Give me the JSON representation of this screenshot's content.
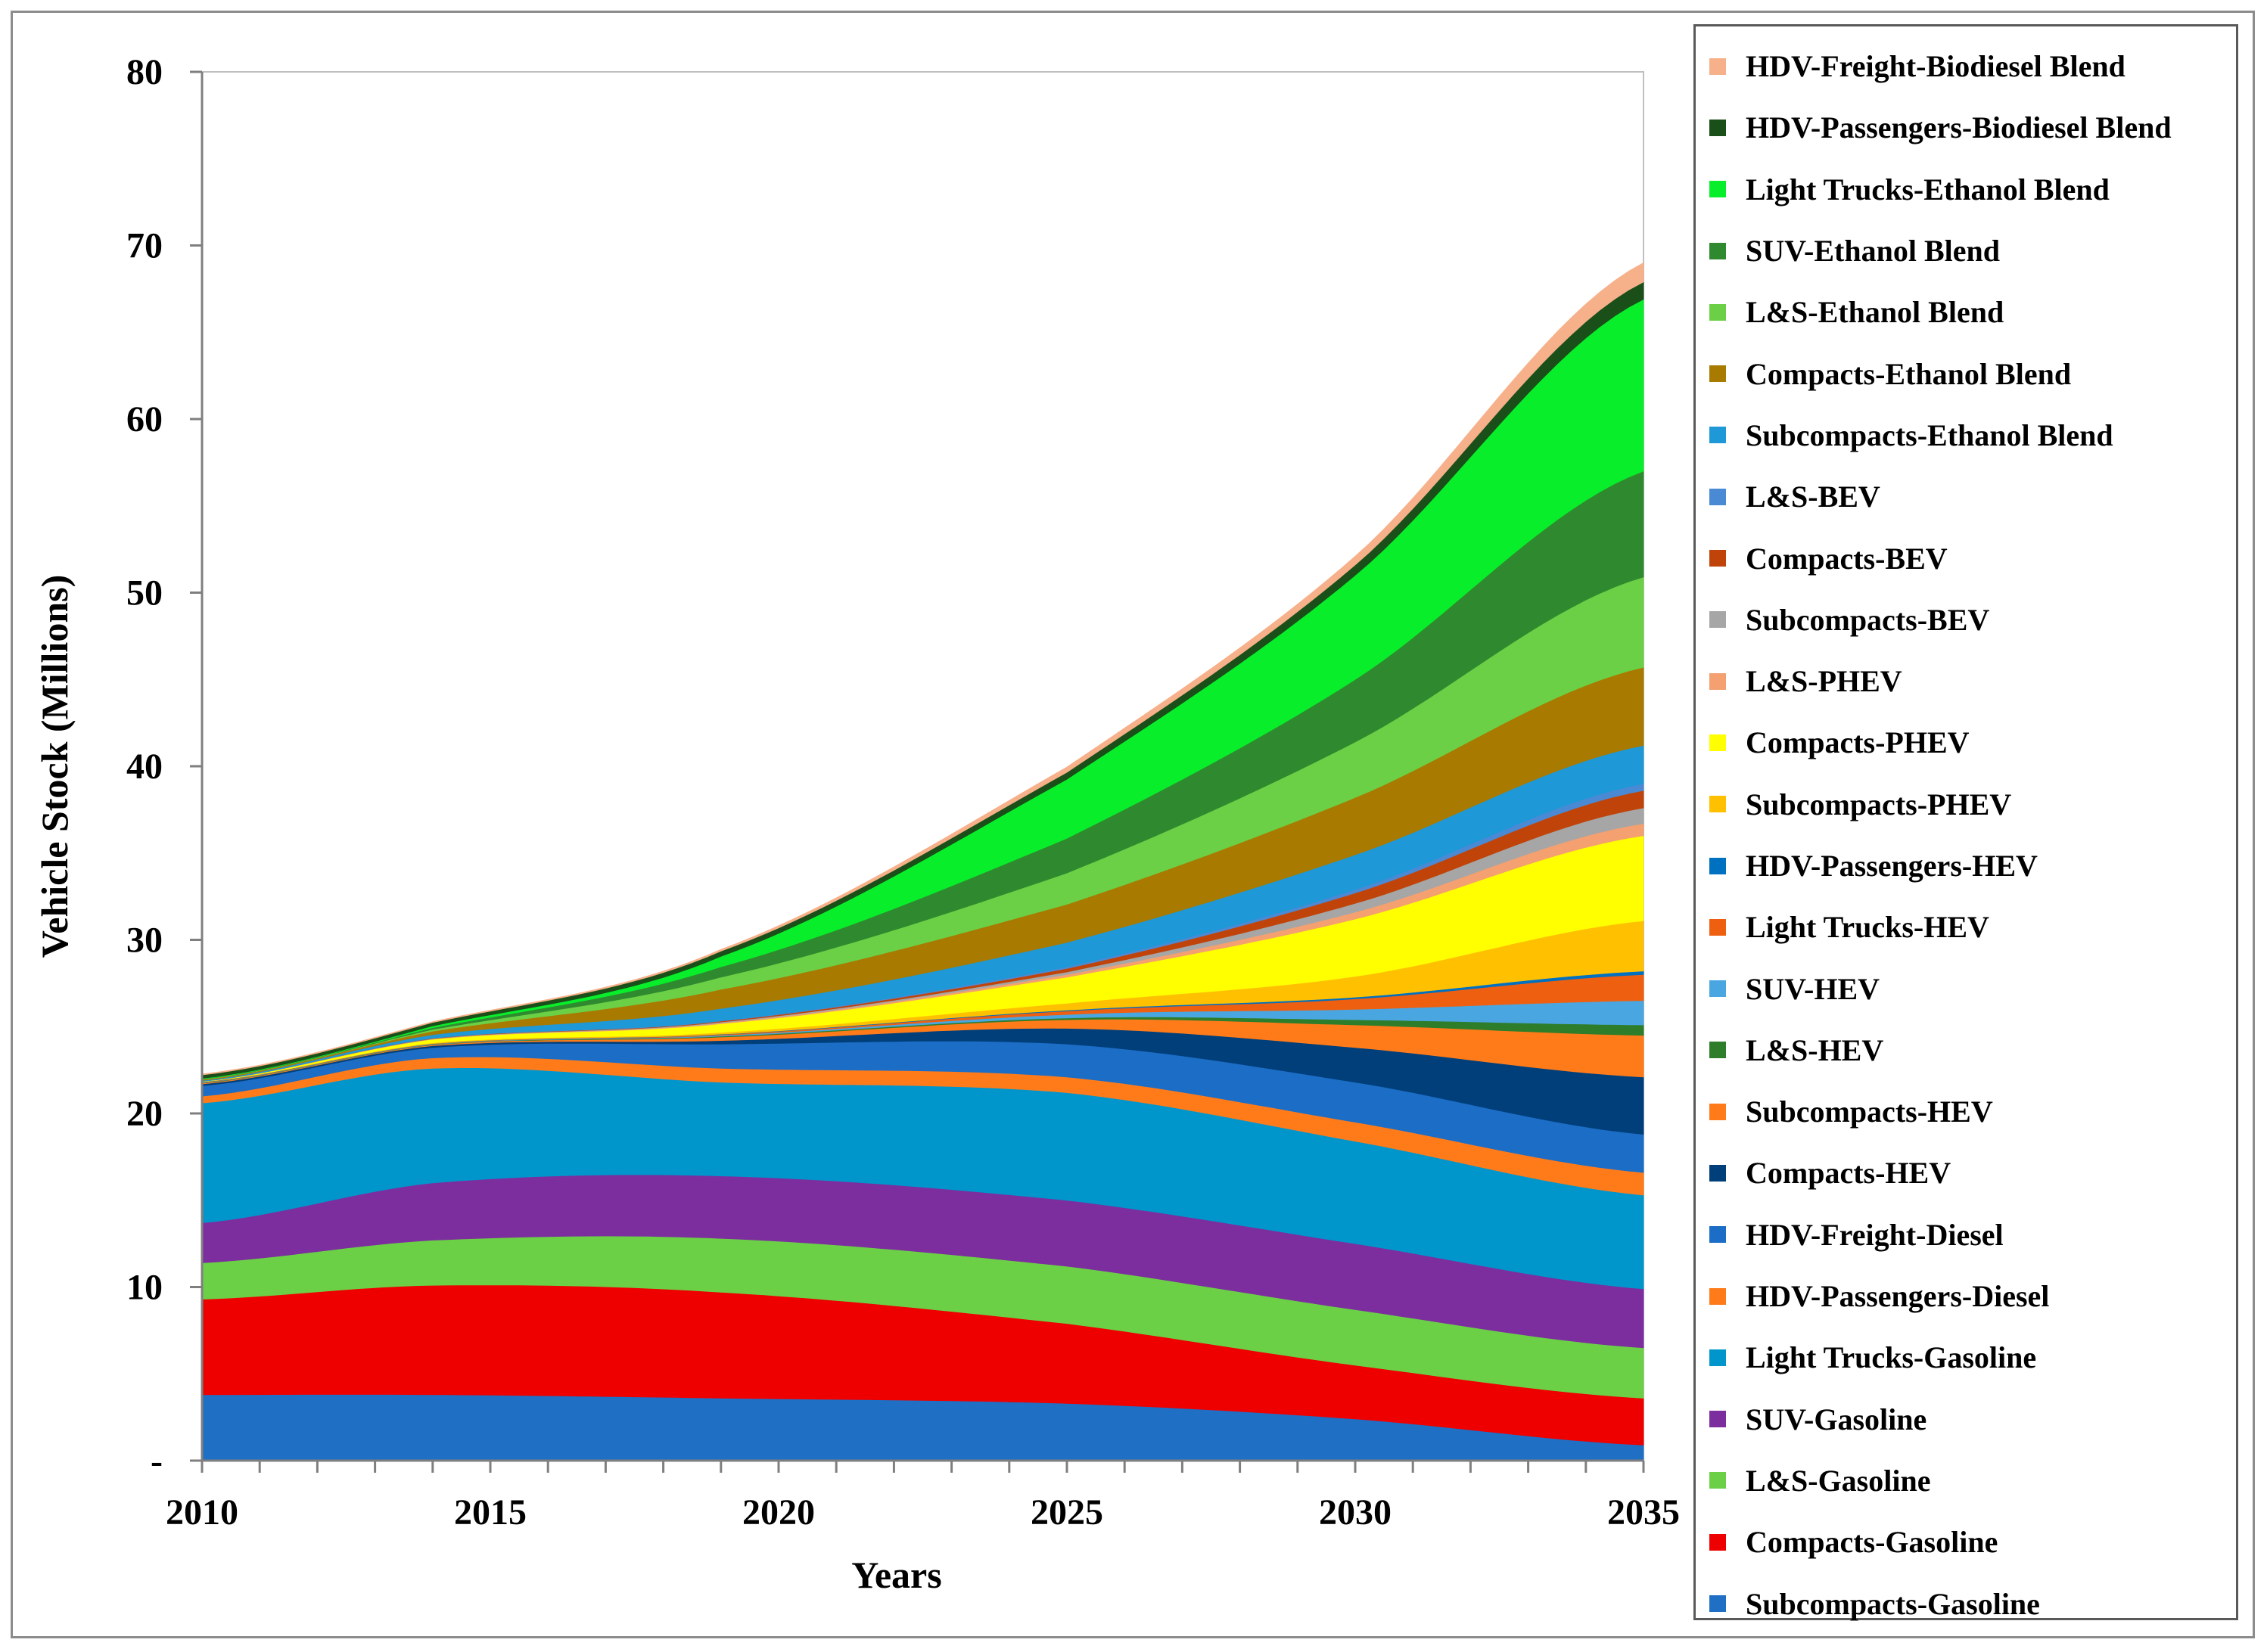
{
  "chart_data": {
    "type": "area",
    "stacked": true,
    "title": "",
    "xlabel": "Years",
    "ylabel": "Vehicle Stock (Millions)",
    "xlim": [
      2010,
      2035
    ],
    "ylim": [
      0,
      80
    ],
    "x_ticks": [
      "2010",
      "2015",
      "2020",
      "2025",
      "2030",
      "2035"
    ],
    "y_ticks": [
      "-",
      "10",
      "20",
      "30",
      "40",
      "50",
      "60",
      "70",
      "80"
    ],
    "grid": false,
    "legend_position": "right",
    "x": [
      2010,
      2014,
      2019,
      2025,
      2030,
      2035
    ],
    "series": [
      {
        "name": "Subcompacts-Gasoline",
        "color": "#1f6fc5",
        "values": [
          3.8,
          3.8,
          3.6,
          3.3,
          2.4,
          0.9
        ]
      },
      {
        "name": "Compacts-Gasoline",
        "color": "#ee0000",
        "values": [
          5.5,
          6.3,
          6.1,
          4.6,
          3.1,
          2.7
        ]
      },
      {
        "name": "L&S-Gasoline",
        "color": "#6bd046",
        "values": [
          2.1,
          2.6,
          3.1,
          3.3,
          3.2,
          2.9
        ]
      },
      {
        "name": "SUV-Gasoline",
        "color": "#7c2e9e",
        "values": [
          2.3,
          3.3,
          3.6,
          3.8,
          3.8,
          3.4
        ]
      },
      {
        "name": "Light Trucks-Gasoline",
        "color": "#0096cc",
        "values": [
          6.9,
          6.6,
          5.4,
          6.2,
          5.9,
          5.4
        ]
      },
      {
        "name": "HDV-Passengers-Diesel",
        "color": "#ff7b1a",
        "values": [
          0.4,
          0.6,
          0.8,
          0.9,
          1.1,
          1.3
        ]
      },
      {
        "name": "HDV-Freight-Diesel",
        "color": "#1b6dc6",
        "values": [
          0.6,
          0.6,
          1.4,
          1.9,
          2.3,
          2.2
        ]
      },
      {
        "name": "Compacts-HEV",
        "color": "#003f7a",
        "values": [
          0.1,
          0.1,
          0.2,
          0.9,
          2.0,
          3.3
        ]
      },
      {
        "name": "Subcompacts-HEV",
        "color": "#ff7b1a",
        "values": [
          0.05,
          0.05,
          0.2,
          0.5,
          1.3,
          2.4
        ]
      },
      {
        "name": "L&S-HEV",
        "color": "#2e7d2a",
        "values": [
          0.02,
          0.02,
          0.05,
          0.1,
          0.3,
          0.6
        ]
      },
      {
        "name": "SUV-HEV",
        "color": "#4aa6e0",
        "values": [
          0.02,
          0.02,
          0.05,
          0.2,
          0.6,
          1.4
        ]
      },
      {
        "name": "Light Trucks-HEV",
        "color": "#ee6010",
        "values": [
          0.02,
          0.02,
          0.05,
          0.2,
          0.6,
          1.5
        ]
      },
      {
        "name": "HDV-Passengers-HEV",
        "color": "#0070c0",
        "values": [
          0.01,
          0.01,
          0.02,
          0.05,
          0.1,
          0.2
        ]
      },
      {
        "name": "Subcompacts-PHEV",
        "color": "#ffc000",
        "values": [
          0.01,
          0.05,
          0.1,
          0.4,
          1.2,
          2.9
        ]
      },
      {
        "name": "Compacts-PHEV",
        "color": "#ffff00",
        "values": [
          0.02,
          0.2,
          0.5,
          1.5,
          3.3,
          4.9
        ]
      },
      {
        "name": "L&S-PHEV",
        "color": "#f4a070",
        "values": [
          0.0,
          0.02,
          0.05,
          0.15,
          0.4,
          0.7
        ]
      },
      {
        "name": "Subcompacts-BEV",
        "color": "#a6a6a6",
        "values": [
          0.0,
          0.02,
          0.05,
          0.15,
          0.5,
          0.9
        ]
      },
      {
        "name": "Compacts-BEV",
        "color": "#c0440a",
        "values": [
          0.0,
          0.02,
          0.05,
          0.2,
          0.6,
          1.0
        ]
      },
      {
        "name": "L&S-BEV",
        "color": "#4a8ad4",
        "values": [
          0.0,
          0.01,
          0.03,
          0.1,
          0.2,
          0.4
        ]
      },
      {
        "name": "Subcompacts-Ethanol Blend",
        "color": "#1e98d6",
        "values": [
          0.05,
          0.2,
          0.7,
          1.4,
          2.0,
          2.2
        ]
      },
      {
        "name": "Compacts-Ethanol Blend",
        "color": "#a87a00",
        "values": [
          0.05,
          0.2,
          1.1,
          2.2,
          3.3,
          4.5
        ]
      },
      {
        "name": "L&S-Ethanol Blend",
        "color": "#6bd046",
        "values": [
          0.02,
          0.1,
          0.7,
          1.8,
          3.2,
          5.2
        ]
      },
      {
        "name": "SUV-Ethanol Blend",
        "color": "#2f8a2f",
        "values": [
          0.02,
          0.1,
          0.6,
          2.0,
          3.6,
          6.1
        ]
      },
      {
        "name": "Light Trucks-Ethanol Blend",
        "color": "#09ee2a",
        "values": [
          0.03,
          0.1,
          0.6,
          3.4,
          6.0,
          9.9
        ]
      },
      {
        "name": "HDV-Passengers-Biodiesel Blend",
        "color": "#1a4f1a",
        "values": [
          0.2,
          0.2,
          0.3,
          0.4,
          0.6,
          1.0
        ]
      },
      {
        "name": "HDV-Freight-Biodiesel Blend",
        "color": "#f6b08a",
        "values": [
          0.05,
          0.05,
          0.1,
          0.3,
          0.5,
          1.1
        ]
      }
    ]
  }
}
